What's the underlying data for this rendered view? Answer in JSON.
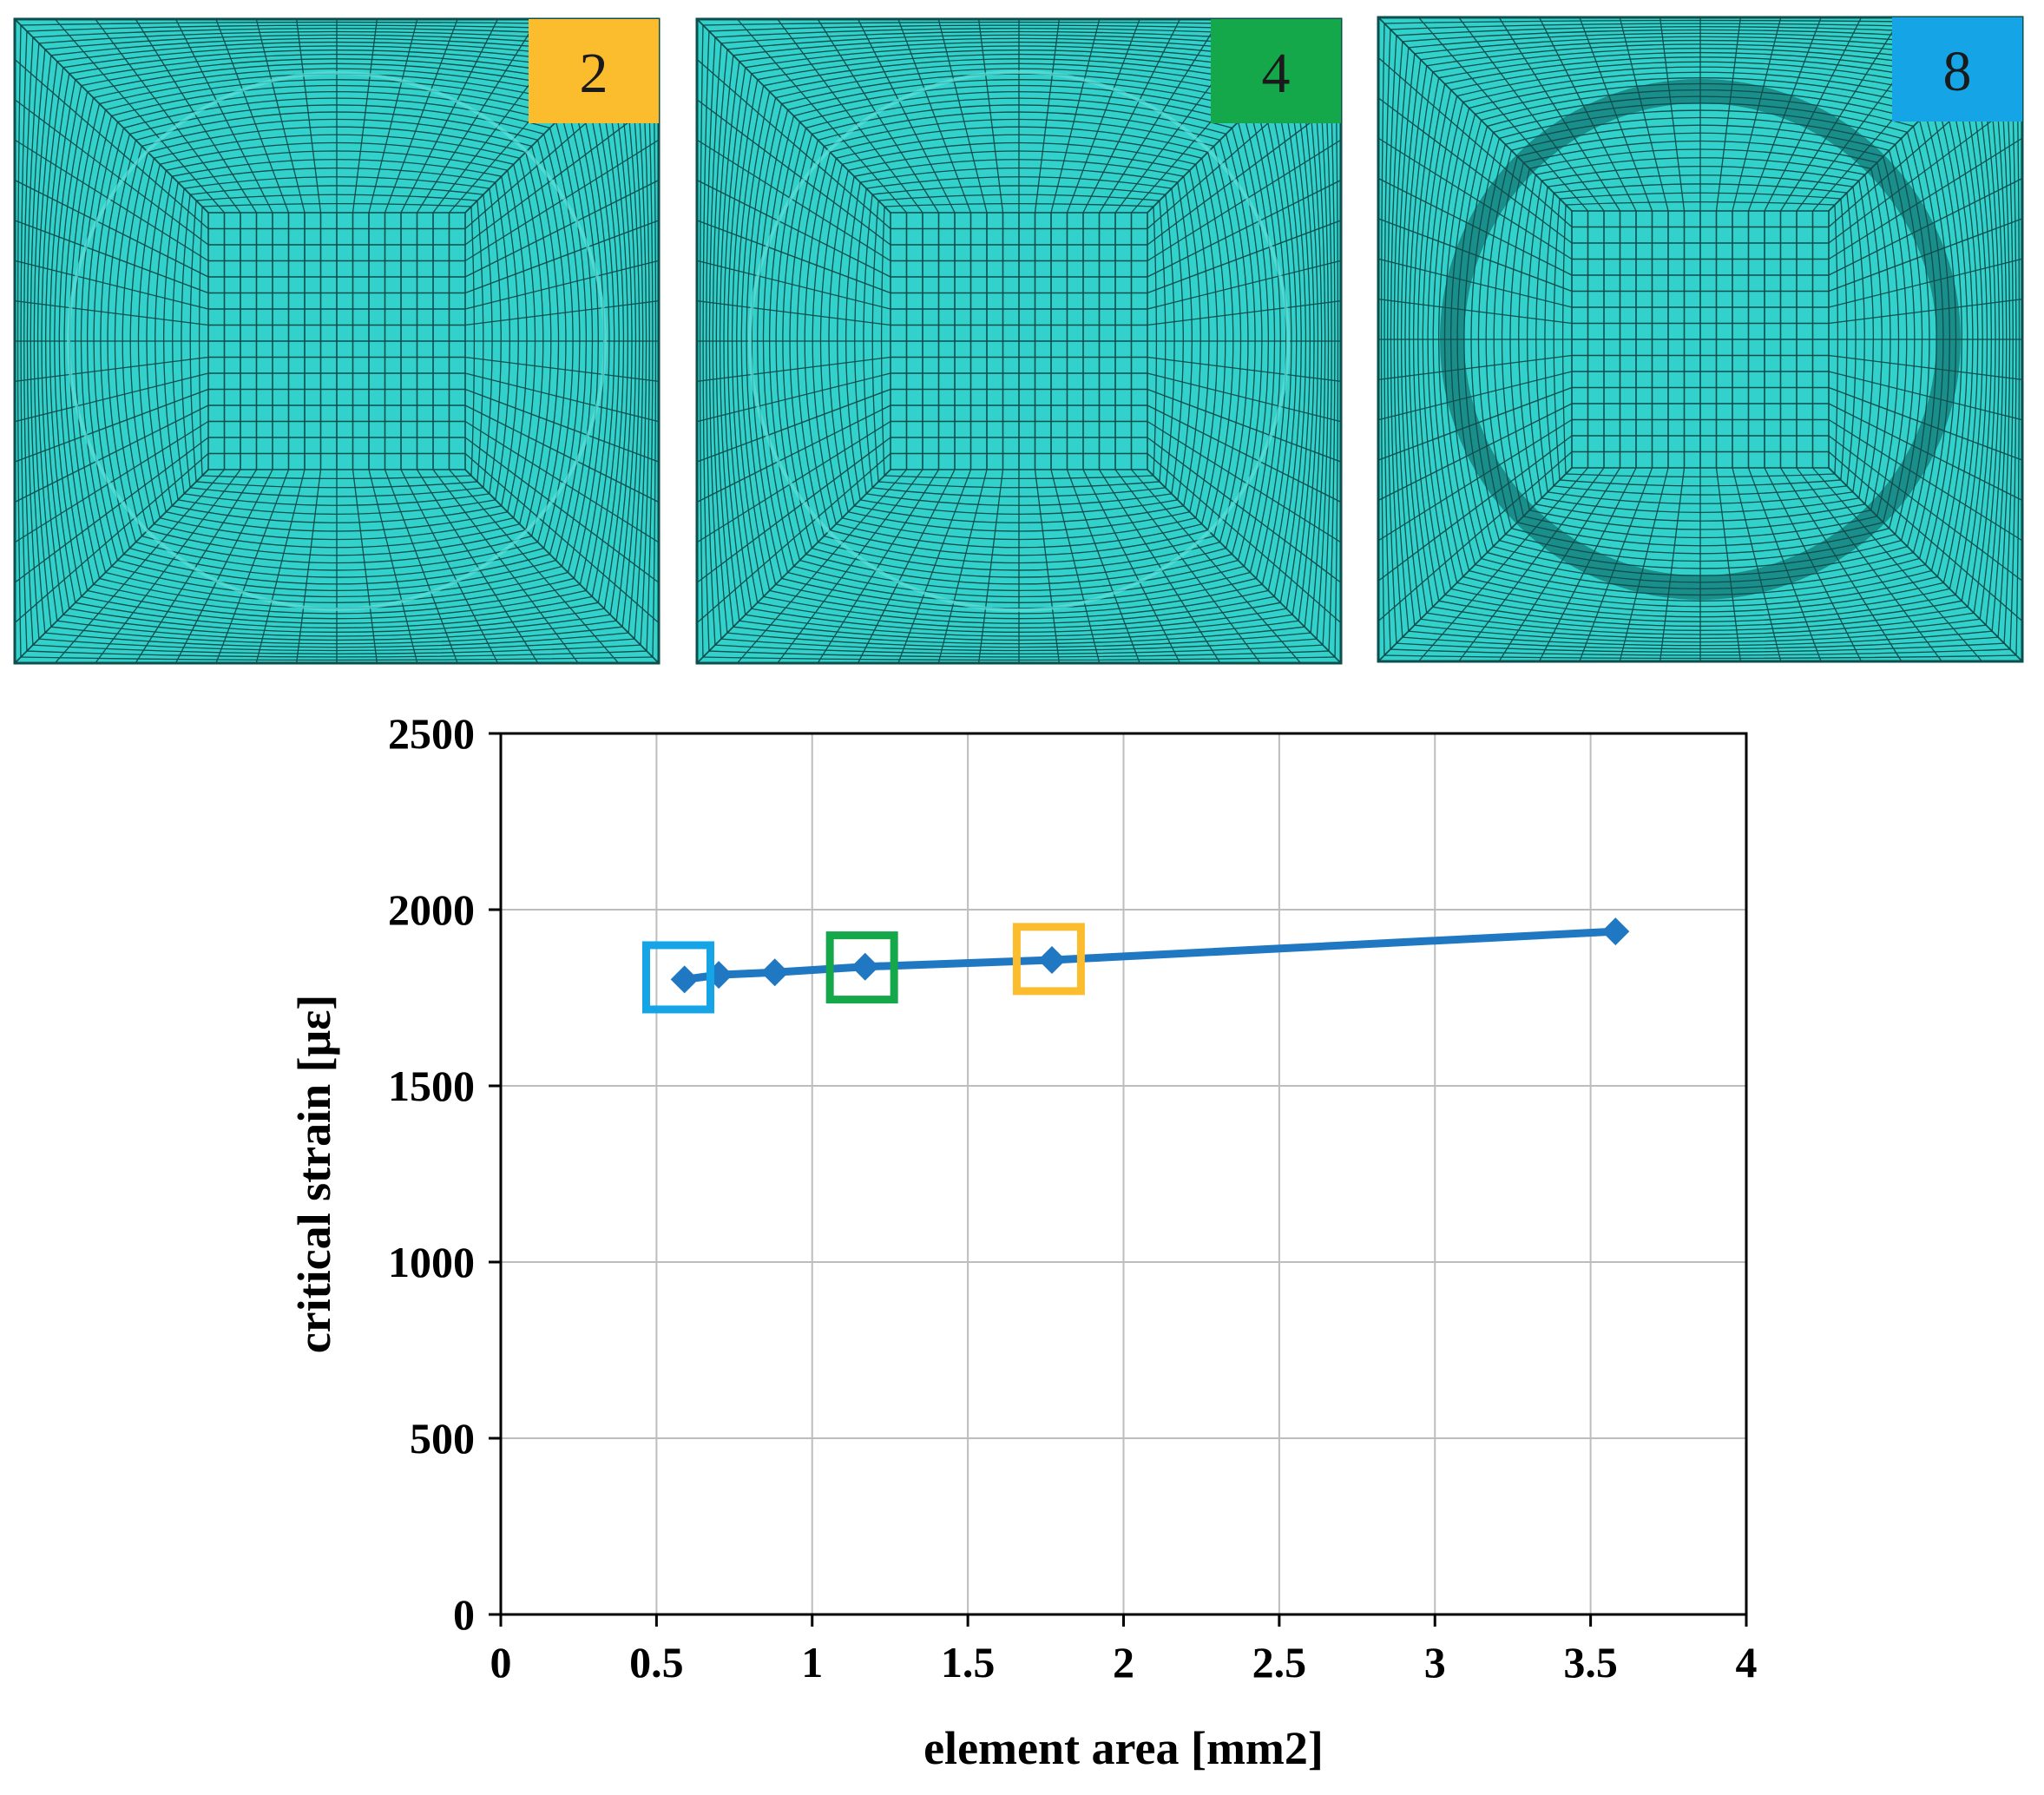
{
  "meshes": [
    {
      "label": "2",
      "color": "#FBBC2E",
      "ring_radius": 309,
      "ring_width": 0,
      "ring_color": ""
    },
    {
      "label": "4",
      "color": "#14A84B",
      "ring_radius": 310,
      "ring_width": 0,
      "ring_color": ""
    },
    {
      "label": "8",
      "color": "#15A5E6",
      "ring_radius": 272,
      "ring_width": 28,
      "ring_color": "#1A8E8A"
    }
  ],
  "mesh_fill": "#33D1CB",
  "mesh_line": "#0E4E4C",
  "chart_data": {
    "type": "line",
    "title": "",
    "xlabel": "element area [mm2]",
    "ylabel": "critical strain [με]",
    "xlim": [
      0,
      4
    ],
    "ylim": [
      0,
      2500
    ],
    "x_ticks": [
      0,
      0.5,
      1,
      1.5,
      2,
      2.5,
      3,
      3.5,
      4
    ],
    "y_ticks": [
      0,
      500,
      1000,
      1500,
      2000,
      2500
    ],
    "x_tick_labels": [
      "0",
      "0.5",
      "1",
      "1.5",
      "2",
      "2.5",
      "3",
      "3.5",
      "4"
    ],
    "y_tick_labels": [
      "0",
      "500",
      "1000",
      "1500",
      "2000",
      "2500"
    ],
    "grid": true,
    "series": [
      {
        "name": "critical strain",
        "color": "#1F78C1",
        "marker": "diamond",
        "x": [
          0.59,
          0.7,
          0.88,
          1.17,
          1.77,
          3.58
        ],
        "y": [
          1802,
          1815,
          1822,
          1838,
          1857,
          1938
        ]
      }
    ],
    "annotations": [
      {
        "label": "8",
        "x": 0.57,
        "y": 1808,
        "color": "#15A5E6"
      },
      {
        "label": "4",
        "x": 1.16,
        "y": 1836,
        "color": "#14A84B"
      },
      {
        "label": "2",
        "x": 1.76,
        "y": 1860,
        "color": "#FBBC2E"
      }
    ]
  }
}
